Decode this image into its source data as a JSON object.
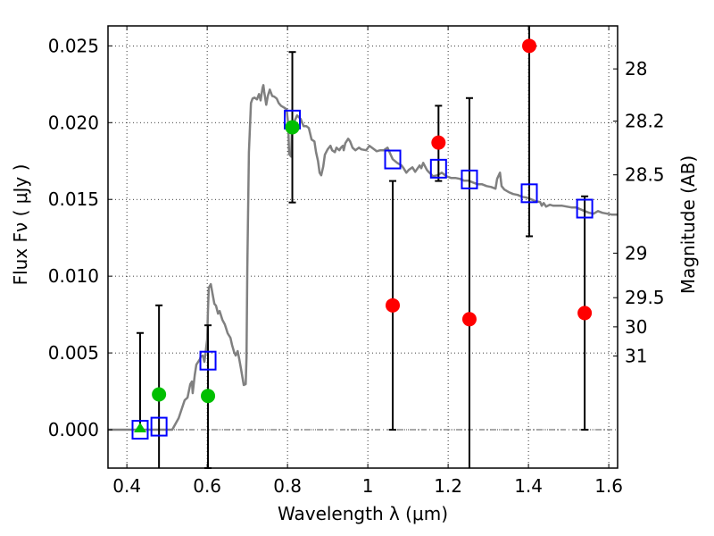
{
  "chart_data": {
    "type": "scatter",
    "title": "",
    "xlabel": "Wavelength  λ (μm)",
    "ylabel": "Flux  Fν  ( μJy )",
    "ylabel_right": "Magnitude (AB)",
    "xlim": [
      0.353,
      1.622
    ],
    "ylim": [
      -0.0025,
      0.0263
    ],
    "grid": true,
    "xticks": [
      0.4,
      0.6,
      0.8,
      1.0,
      1.2,
      1.4,
      1.6
    ],
    "xtick_labels": [
      "0.4",
      "0.6",
      "0.8",
      "1",
      "1.2",
      "1.4",
      "1.6"
    ],
    "yticks": [
      0.0,
      0.005,
      0.01,
      0.015,
      0.02,
      0.025
    ],
    "ytick_labels": [
      "0.000",
      "0.005",
      "0.010",
      "0.015",
      "0.020",
      "0.025"
    ],
    "right_ticks": [
      {
        "label": "28",
        "flux": 0.0235
      },
      {
        "label": "28.2",
        "flux": 0.0201
      },
      {
        "label": "28.5",
        "flux": 0.0166
      },
      {
        "label": "29",
        "flux": 0.0115
      },
      {
        "label": "29.5",
        "flux": 0.0086
      },
      {
        "label": "30",
        "flux": 0.0067
      },
      {
        "label": "31",
        "flux": 0.0048
      }
    ],
    "zero_line": 0.0,
    "colors": {
      "model": "#808080",
      "green": "#00bf00",
      "red": "#ff0000",
      "square": "#0000ff",
      "errorbar": "#000000",
      "grid": "#000000"
    },
    "series": [
      {
        "name": "model-sed",
        "kind": "line",
        "x": [
          0.353,
          0.513,
          0.529,
          0.544,
          0.551,
          0.558,
          0.562,
          0.564,
          0.569,
          0.573,
          0.582,
          0.584,
          0.589,
          0.593,
          0.596,
          0.6,
          0.602,
          0.604,
          0.609,
          0.613,
          0.618,
          0.622,
          0.627,
          0.631,
          0.638,
          0.644,
          0.651,
          0.658,
          0.662,
          0.667,
          0.671,
          0.676,
          0.68,
          0.684,
          0.691,
          0.696,
          0.698,
          0.7,
          0.704,
          0.709,
          0.713,
          0.718,
          0.724,
          0.729,
          0.733,
          0.738,
          0.74,
          0.742,
          0.747,
          0.751,
          0.756,
          0.762,
          0.767,
          0.773,
          0.778,
          0.784,
          0.791,
          0.798,
          0.802,
          0.804,
          0.809,
          0.811,
          0.818,
          0.824,
          0.833,
          0.84,
          0.847,
          0.853,
          0.86,
          0.867,
          0.871,
          0.876,
          0.88,
          0.884,
          0.889,
          0.893,
          0.9,
          0.907,
          0.911,
          0.918,
          0.922,
          0.929,
          0.933,
          0.938,
          0.94,
          0.944,
          0.951,
          0.956,
          0.962,
          0.969,
          0.978,
          0.984,
          0.996,
          1.004,
          1.013,
          1.022,
          1.031,
          1.04,
          1.049,
          1.056,
          1.062,
          1.073,
          1.084,
          1.089,
          1.096,
          1.102,
          1.111,
          1.118,
          1.129,
          1.133,
          1.138,
          1.147,
          1.151,
          1.158,
          1.162,
          1.173,
          1.184,
          1.196,
          1.207,
          1.218,
          1.229,
          1.24,
          1.251,
          1.262,
          1.273,
          1.284,
          1.296,
          1.307,
          1.318,
          1.322,
          1.329,
          1.333,
          1.34,
          1.351,
          1.362,
          1.373,
          1.384,
          1.396,
          1.407,
          1.418,
          1.429,
          1.433,
          1.438,
          1.444,
          1.453,
          1.462,
          1.473,
          1.484,
          1.496,
          1.507,
          1.518,
          1.529,
          1.54,
          1.551,
          1.562,
          1.573,
          1.584,
          1.596,
          1.607,
          1.622
        ],
        "y": [
          0,
          0,
          0.00076,
          0.00192,
          0.00209,
          0.00297,
          0.00314,
          0.00238,
          0.00355,
          0.00424,
          0.00459,
          0.00477,
          0.00483,
          0.00442,
          0.005,
          0.00587,
          0.00773,
          0.00924,
          0.00948,
          0.0089,
          0.0082,
          0.00808,
          0.00756,
          0.00773,
          0.00715,
          0.00686,
          0.00628,
          0.00599,
          0.00552,
          0.00506,
          0.00483,
          0.00512,
          0.00459,
          0.00401,
          0.00291,
          0.00297,
          0.00471,
          0.01052,
          0.01808,
          0.02128,
          0.02157,
          0.02163,
          0.02151,
          0.02186,
          0.02145,
          0.02227,
          0.02244,
          0.02203,
          0.02116,
          0.02174,
          0.02215,
          0.02174,
          0.02169,
          0.02157,
          0.02128,
          0.0211,
          0.02099,
          0.02087,
          0.01983,
          0.01797,
          0.01779,
          0.01953,
          0.02012,
          0.02047,
          0.02023,
          0.01977,
          0.01977,
          0.01965,
          0.0189,
          0.01878,
          0.01808,
          0.0175,
          0.01674,
          0.01657,
          0.01715,
          0.01791,
          0.01826,
          0.01849,
          0.0182,
          0.01808,
          0.01837,
          0.0182,
          0.01837,
          0.01849,
          0.0182,
          0.01866,
          0.01895,
          0.01878,
          0.01837,
          0.0182,
          0.01837,
          0.01826,
          0.0182,
          0.01849,
          0.01831,
          0.01814,
          0.0182,
          0.0182,
          0.01837,
          0.01797,
          0.01762,
          0.01738,
          0.01721,
          0.01703,
          0.01674,
          0.01692,
          0.01709,
          0.0168,
          0.01721,
          0.01703,
          0.01738,
          0.01692,
          0.0168,
          0.01663,
          0.01651,
          0.01657,
          0.01674,
          0.01651,
          0.0164,
          0.0164,
          0.01634,
          0.01622,
          0.01622,
          0.0161,
          0.01599,
          0.01599,
          0.01587,
          0.01581,
          0.0157,
          0.01634,
          0.01674,
          0.01587,
          0.01564,
          0.01547,
          0.01535,
          0.01529,
          0.01517,
          0.01512,
          0.015,
          0.01488,
          0.01483,
          0.01459,
          0.01476,
          0.01453,
          0.01465,
          0.01459,
          0.01459,
          0.01459,
          0.01453,
          0.01448,
          0.01448,
          0.01436,
          0.01424,
          0.01413,
          0.01407,
          0.01424,
          0.01413,
          0.01407,
          0.01401,
          0.01401
        ]
      },
      {
        "name": "green-detections",
        "kind": "points",
        "points": [
          {
            "x": 0.433,
            "y": 0.0,
            "err_lo": 0.0,
            "err_hi": 0.0063,
            "marker": "triangle"
          },
          {
            "x": 0.48,
            "y": 0.0023,
            "err_lo": -0.003,
            "err_hi": 0.0081,
            "marker": "circle"
          },
          {
            "x": 0.602,
            "y": 0.0022,
            "err_lo": -0.0025,
            "err_hi": 0.0068,
            "marker": "circle"
          },
          {
            "x": 0.812,
            "y": 0.0197,
            "err_lo": 0.0148,
            "err_hi": 0.0246,
            "marker": "circle"
          }
        ]
      },
      {
        "name": "red-detections",
        "kind": "points",
        "points": [
          {
            "x": 1.062,
            "y": 0.0081,
            "err_lo": 0.0,
            "err_hi": 0.0162,
            "marker": "circle"
          },
          {
            "x": 1.176,
            "y": 0.0187,
            "err_lo": 0.0162,
            "err_hi": 0.0211,
            "marker": "circle"
          },
          {
            "x": 1.253,
            "y": 0.0072,
            "err_lo": -0.003,
            "err_hi": 0.0216,
            "marker": "circle"
          },
          {
            "x": 1.402,
            "y": 0.025,
            "err_lo": 0.0126,
            "err_hi": 0.03,
            "marker": "circle"
          },
          {
            "x": 1.54,
            "y": 0.0076,
            "err_lo": 0.0,
            "err_hi": 0.0152,
            "marker": "circle"
          }
        ]
      },
      {
        "name": "model-synthetic-photometry",
        "kind": "squares",
        "points": [
          {
            "x": 0.433,
            "y": 0.0
          },
          {
            "x": 0.48,
            "y": 0.0002
          },
          {
            "x": 0.602,
            "y": 0.0045
          },
          {
            "x": 0.812,
            "y": 0.0202
          },
          {
            "x": 1.062,
            "y": 0.0176
          },
          {
            "x": 1.176,
            "y": 0.017
          },
          {
            "x": 1.253,
            "y": 0.0163
          },
          {
            "x": 1.402,
            "y": 0.0154
          },
          {
            "x": 1.54,
            "y": 0.0144
          }
        ]
      }
    ]
  }
}
